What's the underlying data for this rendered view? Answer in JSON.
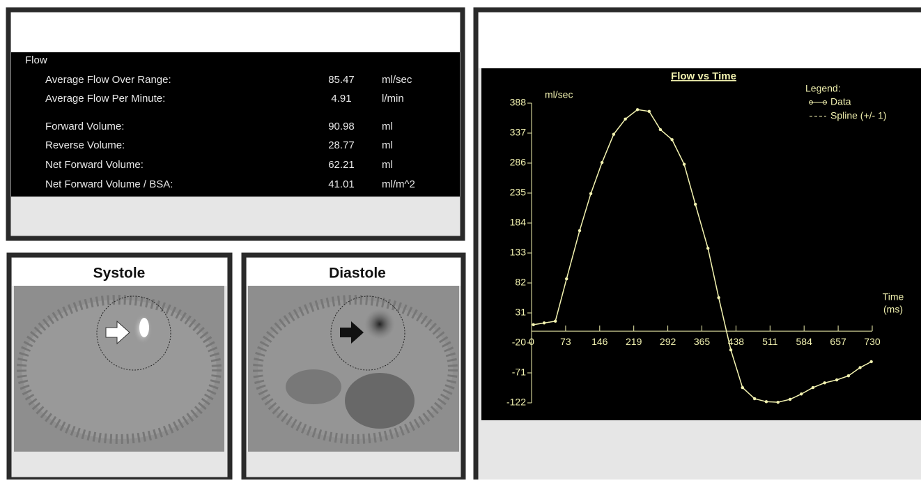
{
  "table": {
    "section": "Flow",
    "rows": [
      [
        "Average Flow Over Range:",
        "85.47",
        "ml/sec"
      ],
      [
        "Average Flow Per Minute:",
        "4.91",
        "l/min"
      ],
      [
        "Forward Volume:",
        "90.98",
        "ml"
      ],
      [
        "Reverse Volume:",
        "28.77",
        "ml"
      ],
      [
        "Net Forward Volume:",
        "62.21",
        "ml"
      ],
      [
        "Net Forward Volume / BSA:",
        "41.01",
        "ml/m^2"
      ]
    ]
  },
  "images": [
    {
      "label": "Systole"
    },
    {
      "label": "Diastole"
    }
  ],
  "chart_data": {
    "type": "line",
    "title": "Flow vs Time",
    "y_label": "ml/sec",
    "x_label": "Time",
    "x_unit": "(ms)",
    "legend_title": "Legend:",
    "x": [
      4,
      27,
      51,
      75,
      103,
      127,
      151,
      176,
      201,
      227,
      252,
      276,
      301,
      327,
      351,
      378,
      401,
      427,
      452,
      478,
      503,
      528,
      554,
      578,
      603,
      628,
      654,
      679,
      704,
      728
    ],
    "series": [
      {
        "name": "Data",
        "color": "#f2f2b0",
        "values": [
          11,
          14,
          17,
          89,
          171,
          234,
          287,
          335,
          361,
          377,
          374,
          343,
          326,
          284,
          216,
          141,
          57,
          -32,
          -96,
          -115,
          -120,
          -121,
          -116,
          -107,
          -96,
          -88,
          -83,
          -76,
          -62,
          -52
        ]
      },
      {
        "name": "Spline (+/- 1)",
        "color": "#f2f2b0",
        "dashed": true,
        "values": [
          11,
          14,
          17,
          89,
          171,
          234,
          287,
          335,
          361,
          377,
          374,
          343,
          326,
          284,
          216,
          141,
          57,
          -32,
          -96,
          -115,
          -120,
          -121,
          -116,
          -107,
          -96,
          -88,
          -83,
          -76,
          -62,
          -52
        ]
      }
    ],
    "xlim": [
      0,
      730
    ],
    "xticks": [
      0,
      73,
      146,
      219,
      292,
      365,
      438,
      511,
      584,
      657,
      730
    ],
    "ylim": [
      -122,
      388
    ],
    "yticks": [
      388,
      337,
      286,
      235,
      184,
      133,
      82,
      31,
      -20,
      -71,
      -122
    ]
  }
}
